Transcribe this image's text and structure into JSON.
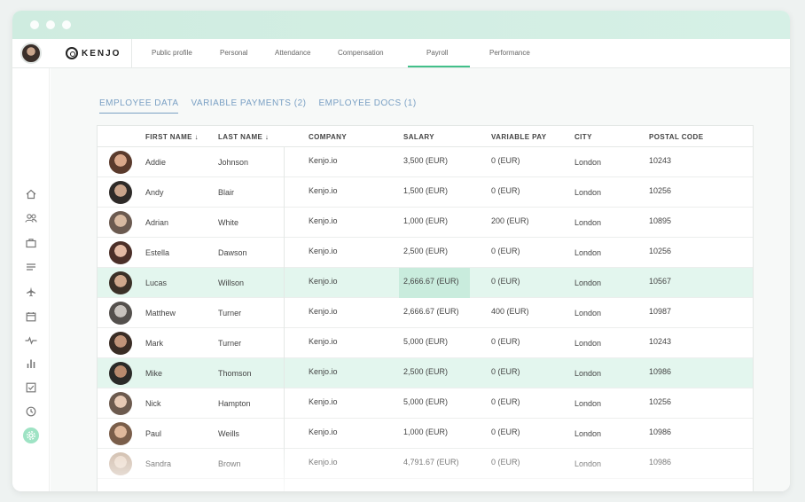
{
  "topnav": {
    "logo": "KENJO",
    "tabs": [
      {
        "label": "Public profile"
      },
      {
        "label": "Personal"
      },
      {
        "label": "Attendance"
      },
      {
        "label": "Compensation"
      },
      {
        "label": "Payroll"
      },
      {
        "label": "Performance"
      }
    ],
    "active_tab": "Payroll"
  },
  "sidebar": {
    "items": [
      {
        "icon": "home-icon"
      },
      {
        "icon": "people-icon"
      },
      {
        "icon": "briefcase-icon"
      },
      {
        "icon": "list-icon"
      },
      {
        "icon": "airplane-icon"
      },
      {
        "icon": "calendar-icon"
      },
      {
        "icon": "pulse-icon"
      },
      {
        "icon": "bar-chart-icon"
      },
      {
        "icon": "checkbox-icon"
      },
      {
        "icon": "clock-icon"
      },
      {
        "icon": "settings-icon"
      }
    ]
  },
  "subtabs": [
    {
      "label": "EMPLOYEE DATA"
    },
    {
      "label": "VARIABLE PAYMENTS (2)"
    },
    {
      "label": "EMPLOYEE DOCS (1)"
    }
  ],
  "table": {
    "headers": {
      "first_name": "FIRST NAME ↓",
      "last_name": "LAST NAME ↓",
      "company": "COMPANY",
      "salary": "SALARY",
      "variable_pay": "VARIABLE PAY",
      "city": "CITY",
      "postal_code": "POSTAL CODE"
    },
    "rows": [
      {
        "first": "Addie",
        "last": "Johnson",
        "company": "Kenjo.io",
        "salary": "3,500 (EUR)",
        "variable": "0 (EUR)",
        "city": "London",
        "postal": "10243"
      },
      {
        "first": "Andy",
        "last": "Blair",
        "company": "Kenjo.io",
        "salary": "1,500 (EUR)",
        "variable": "0 (EUR)",
        "city": "London",
        "postal": "10256"
      },
      {
        "first": "Adrian",
        "last": "White",
        "company": "Kenjo.io",
        "salary": "1,000 (EUR)",
        "variable": "200 (EUR)",
        "city": "London",
        "postal": "10895"
      },
      {
        "first": "Estella",
        "last": "Dawson",
        "company": "Kenjo.io",
        "salary": "2,500 (EUR)",
        "variable": "0 (EUR)",
        "city": "London",
        "postal": "10256"
      },
      {
        "first": "Lucas",
        "last": "Willson",
        "company": "Kenjo.io",
        "salary": "2,666.67 (EUR)",
        "variable": "0 (EUR)",
        "city": "London",
        "postal": "10567"
      },
      {
        "first": "Matthew",
        "last": "Turner",
        "company": "Kenjo.io",
        "salary": "2,666.67 (EUR)",
        "variable": "400 (EUR)",
        "city": "London",
        "postal": "10987"
      },
      {
        "first": "Mark",
        "last": "Turner",
        "company": "Kenjo.io",
        "salary": "5,000 (EUR)",
        "variable": "0 (EUR)",
        "city": "London",
        "postal": "10243"
      },
      {
        "first": "Mike",
        "last": "Thomson",
        "company": "Kenjo.io",
        "salary": "2,500 (EUR)",
        "variable": "0 (EUR)",
        "city": "London",
        "postal": "10986"
      },
      {
        "first": "Nick",
        "last": "Hampton",
        "company": "Kenjo.io",
        "salary": "5,000 (EUR)",
        "variable": "0 (EUR)",
        "city": "London",
        "postal": "10256"
      },
      {
        "first": "Paul",
        "last": "Weills",
        "company": "Kenjo.io",
        "salary": "1,000 (EUR)",
        "variable": "0 (EUR)",
        "city": "London",
        "postal": "10986"
      },
      {
        "first": "Sandra",
        "last": "Brown",
        "company": "Kenjo.io",
        "salary": "4,791.67 (EUR)",
        "variable": "0 (EUR)",
        "city": "London",
        "postal": "10986"
      }
    ]
  },
  "colors": {
    "accent": "#42c08a",
    "row_highlight": "#e3f6ee",
    "cell_highlight": "#c9ecdd",
    "subtab_text": "#7aa0c4"
  }
}
